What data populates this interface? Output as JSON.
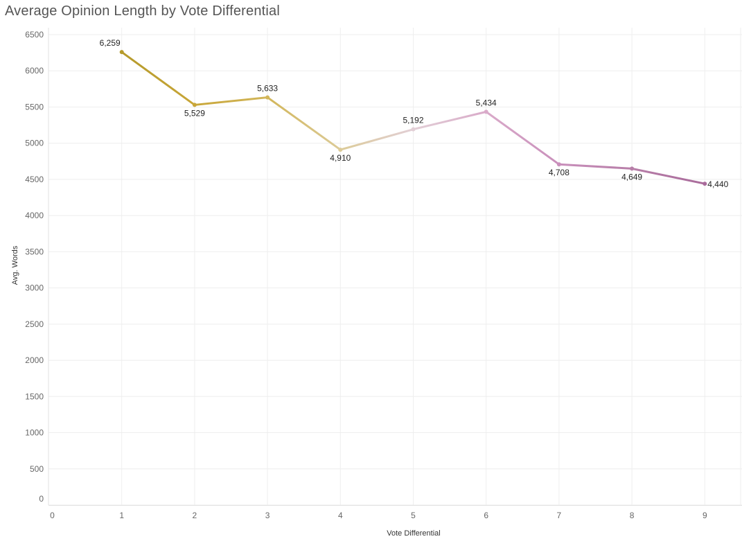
{
  "chart_data": {
    "type": "line",
    "title": "Average Opinion Length by Vote Differential",
    "xlabel": "Vote Differential",
    "ylabel": "Avg. Words",
    "x_ticks": [
      "0",
      "1",
      "2",
      "3",
      "4",
      "5",
      "6",
      "7",
      "8",
      "9"
    ],
    "y_ticks": [
      "0",
      "500",
      "1000",
      "1500",
      "2000",
      "2500",
      "3000",
      "3500",
      "4000",
      "4500",
      "5000",
      "5500",
      "6000",
      "6500"
    ],
    "xlim": [
      0,
      9.5
    ],
    "ylim": [
      0,
      6500
    ],
    "grid": true,
    "series": [
      {
        "x": [
          1,
          2,
          3,
          4,
          5,
          6,
          7,
          8,
          9
        ],
        "values": [
          6259,
          5529,
          5633,
          4910,
          5192,
          5434,
          4708,
          4649,
          4440
        ],
        "labels": [
          "6,259",
          "5,529",
          "5,633",
          "4,910",
          "5,192",
          "5,434",
          "4,708",
          "4,649",
          "4,440"
        ],
        "colors": [
          "#b59a2b",
          "#c8a638",
          "#d2b65a",
          "#dccb98",
          "#e2cfd6",
          "#d9aac9",
          "#c98fbb",
          "#b77ea8",
          "#a96b9b"
        ]
      }
    ]
  }
}
